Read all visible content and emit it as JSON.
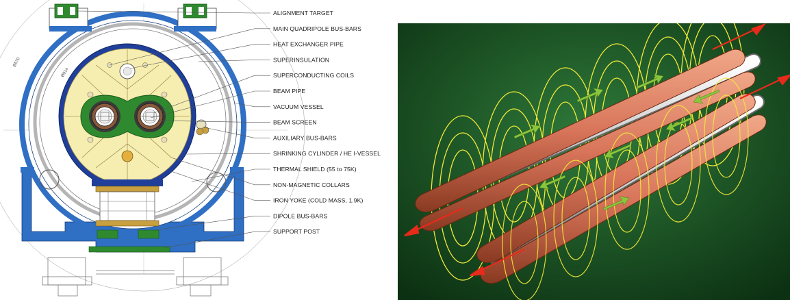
{
  "cross_section": {
    "callouts": [
      {
        "id": "alignment-target",
        "label": "ALIGNMENT TARGET"
      },
      {
        "id": "main-quadripole-bus-bars",
        "label": "MAIN QUADRIPOLE BUS-BARS"
      },
      {
        "id": "heat-exchanger-pipe",
        "label": "HEAT EXCHANGER PIPE"
      },
      {
        "id": "superinsulation",
        "label": "SUPERINSULATION"
      },
      {
        "id": "superconducting-coils",
        "label": "SUPERCONDUCTING COILS"
      },
      {
        "id": "beam-pipe",
        "label": "BEAM PIPE"
      },
      {
        "id": "vacuum-vessel",
        "label": "VACUUM VESSEL"
      },
      {
        "id": "beam-screen",
        "label": "BEAM SCREEN"
      },
      {
        "id": "auxiliary-bus-bars",
        "label": "AUXILIARY BUS-BARS"
      },
      {
        "id": "shrinking-cylinder",
        "label": "SHRINKING CYLINDER / HE I-VESSEL"
      },
      {
        "id": "thermal-shield",
        "label": "THERMAL SHIELD (55 to 75K)"
      },
      {
        "id": "non-magnetic-collars",
        "label": "NON-MAGNETIC COLLARS"
      },
      {
        "id": "iron-yoke",
        "label": "IRON YOKE (COLD MASS, 1.9K)"
      },
      {
        "id": "dipole-bus-bars",
        "label": "DIPOLE BUS-BARS"
      },
      {
        "id": "support-post",
        "label": "SUPPORT POST"
      }
    ],
    "dimension_labels": [
      "Ø570",
      "Ø914"
    ]
  },
  "colors": {
    "vessel_blue": "#2f6fc4",
    "yoke_yellow": "#f6edb0",
    "collar_green": "#2f8a2f",
    "coil_copper": "#d8755a",
    "field_line_yellow": "#f2e93a",
    "arrow_green": "#8ac63c",
    "beam_red": "#e82a1a",
    "background_green_light": "#2f7a3a",
    "background_green_dark": "#0c3012"
  },
  "icons": [
    "beam-direction-arrow-icon",
    "magnetic-field-arrow-icon"
  ]
}
